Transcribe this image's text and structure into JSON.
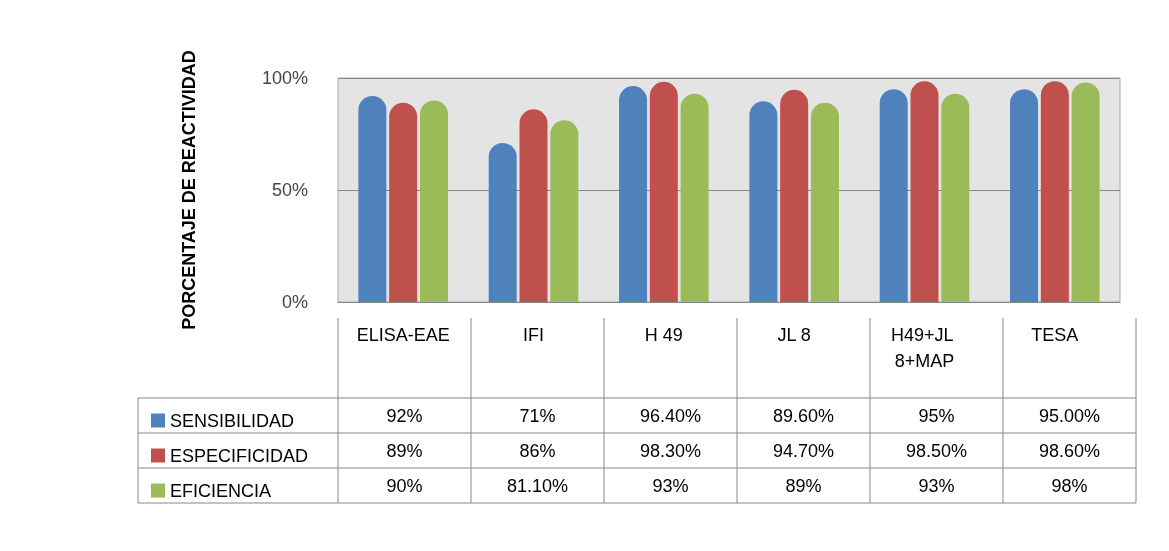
{
  "chart_data": {
    "type": "bar",
    "ylabel": "PORCENTAJE DE REACTIVIDAD",
    "categories": [
      "ELISA-EAE",
      "IFI",
      "H 49",
      "JL 8",
      "H49+JL 8+MAP",
      "TESA"
    ],
    "series": [
      {
        "name": "SENSIBILIDAD",
        "color": "#4f81bd",
        "values": [
          92,
          71,
          96.4,
          89.6,
          95,
          95
        ],
        "value_labels": [
          "92%",
          "71%",
          "96.40%",
          "89.60%",
          "95%",
          "95.00%"
        ]
      },
      {
        "name": "ESPECIFICIDAD",
        "color": "#c0504d",
        "values": [
          89,
          86,
          98.3,
          94.7,
          98.5,
          98.6
        ],
        "value_labels": [
          "89%",
          "86%",
          "98.30%",
          "94.70%",
          "98.50%",
          "98.60%"
        ]
      },
      {
        "name": "EFICIENCIA",
        "color": "#9bbb59",
        "values": [
          90,
          81.1,
          93,
          89,
          93,
          98
        ],
        "value_labels": [
          "90%",
          "81.10%",
          "93%",
          "89%",
          "93%",
          "98%"
        ]
      }
    ],
    "ylim": [
      0,
      100
    ],
    "yticks": [
      {
        "value": 0,
        "label": "0%"
      },
      {
        "value": 50,
        "label": "50%"
      },
      {
        "value": 100,
        "label": "100%"
      }
    ],
    "grid": "y",
    "legend": "bottom left"
  }
}
